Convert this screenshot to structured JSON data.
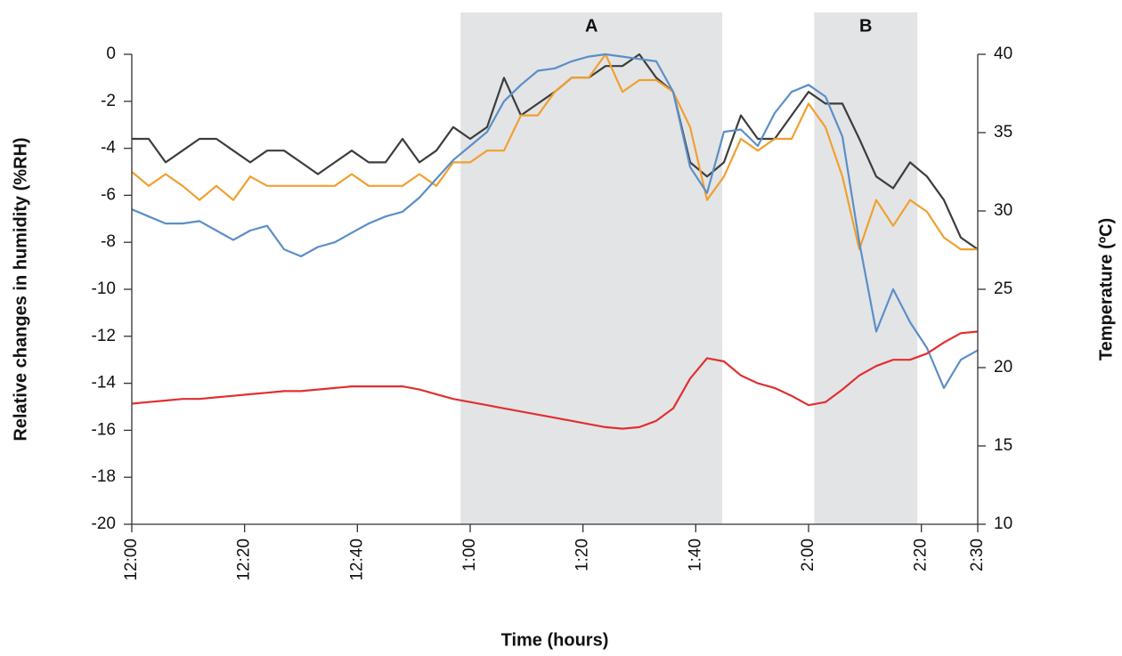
{
  "chart_data": {
    "type": "line",
    "x_label": "Time (hours)",
    "y_label": "Relative changes in humidity (%RH)",
    "y2_label": "Temperature (ºC)",
    "xlim": [
      0,
      150
    ],
    "xticks": [
      {
        "value": 0,
        "label": "12:00"
      },
      {
        "value": 20,
        "label": "12:20"
      },
      {
        "value": 40,
        "label": "12:40"
      },
      {
        "value": 60,
        "label": "1:00"
      },
      {
        "value": 80,
        "label": "1:20"
      },
      {
        "value": 100,
        "label": "1:40"
      },
      {
        "value": 120,
        "label": "2:00"
      },
      {
        "value": 140,
        "label": "2:20"
      },
      {
        "value": 150,
        "label": "2:30"
      }
    ],
    "ylim": [
      -20,
      0
    ],
    "yticks": [
      -20,
      -18,
      -16,
      -14,
      -12,
      -10,
      -8,
      -6,
      -4,
      -2,
      0
    ],
    "y2lim": [
      10,
      40
    ],
    "y2ticks": [
      10,
      15,
      20,
      25,
      30,
      35,
      40
    ],
    "shaded_regions": [
      {
        "label": "A",
        "start": 58.3,
        "end": 104.7,
        "color": "#e3e4e6"
      },
      {
        "label": "B",
        "start": 121,
        "end": 139.3,
        "color": "#e3e4e6"
      }
    ],
    "x": [
      0,
      3,
      6,
      9,
      12,
      15,
      18,
      21,
      24,
      27,
      30,
      33,
      36,
      39,
      42,
      45,
      48,
      51,
      54,
      57,
      60,
      63,
      66,
      69,
      72,
      75,
      78,
      81,
      84,
      87,
      90,
      93,
      96,
      99,
      102,
      105,
      108,
      111,
      114,
      117,
      120,
      123,
      126,
      129,
      132,
      135,
      138,
      141,
      144,
      147,
      150
    ],
    "series": [
      {
        "color": "#3d3d3d",
        "values": [
          -3.6,
          -3.6,
          -4.6,
          -4.1,
          -3.6,
          -3.6,
          -4.1,
          -4.6,
          -4.1,
          -4.1,
          -4.6,
          -5.1,
          -4.6,
          -4.1,
          -4.6,
          -4.6,
          -3.6,
          -4.6,
          -4.1,
          -3.1,
          -3.6,
          -3.1,
          -1.0,
          -2.6,
          -2.1,
          -1.6,
          -1.0,
          -1.0,
          -0.5,
          -0.5,
          0.0,
          -1.0,
          -1.6,
          -4.6,
          -5.2,
          -4.6,
          -2.6,
          -3.6,
          -3.6,
          -2.6,
          -1.6,
          -2.1,
          -2.1,
          -3.6,
          -5.2,
          -5.7,
          -4.6,
          -5.2,
          -6.2,
          -7.8,
          -8.3
        ]
      },
      {
        "color": "#f0a030",
        "values": [
          -5.0,
          -5.6,
          -5.1,
          -5.6,
          -6.2,
          -5.6,
          -6.2,
          -5.2,
          -5.6,
          -5.6,
          -5.6,
          -5.6,
          -5.6,
          -5.1,
          -5.6,
          -5.6,
          -5.6,
          -5.1,
          -5.6,
          -4.6,
          -4.6,
          -4.1,
          -4.1,
          -2.6,
          -2.6,
          -1.6,
          -1.0,
          -1.0,
          0.0,
          -1.6,
          -1.1,
          -1.1,
          -1.6,
          -3.1,
          -6.2,
          -5.2,
          -3.6,
          -4.1,
          -3.6,
          -3.6,
          -2.1,
          -3.1,
          -5.2,
          -8.3,
          -6.2,
          -7.3,
          -6.2,
          -6.7,
          -7.8,
          -8.3,
          -8.3
        ]
      },
      {
        "color": "#5b8fc7",
        "values": [
          -6.6,
          -6.9,
          -7.2,
          -7.2,
          -7.1,
          -7.5,
          -7.9,
          -7.5,
          -7.3,
          -8.3,
          -8.6,
          -8.2,
          -8.0,
          -7.6,
          -7.2,
          -6.9,
          -6.7,
          -6.1,
          -5.3,
          -4.5,
          -3.9,
          -3.3,
          -2.0,
          -1.3,
          -0.7,
          -0.6,
          -0.3,
          -0.1,
          0.0,
          -0.1,
          -0.2,
          -0.3,
          -1.6,
          -4.8,
          -5.9,
          -3.3,
          -3.2,
          -3.9,
          -2.5,
          -1.6,
          -1.3,
          -1.8,
          -3.5,
          -8.0,
          -11.8,
          -10.0,
          -11.4,
          -12.5,
          -14.2,
          -13.0,
          -12.6
        ]
      },
      {
        "color": "#e03030",
        "axis": "y2",
        "values": [
          17.7,
          17.8,
          17.9,
          18.0,
          18.0,
          18.1,
          18.2,
          18.3,
          18.4,
          18.5,
          18.5,
          18.6,
          18.7,
          18.8,
          18.8,
          18.8,
          18.8,
          18.6,
          18.3,
          18.0,
          17.8,
          17.6,
          17.4,
          17.2,
          17.0,
          16.8,
          16.6,
          16.4,
          16.2,
          16.1,
          16.2,
          16.6,
          17.4,
          19.3,
          20.6,
          20.4,
          19.5,
          19.0,
          18.7,
          18.2,
          17.6,
          17.8,
          18.6,
          19.5,
          20.1,
          20.5,
          20.5,
          20.9,
          21.6,
          22.2,
          22.3
        ]
      }
    ]
  }
}
